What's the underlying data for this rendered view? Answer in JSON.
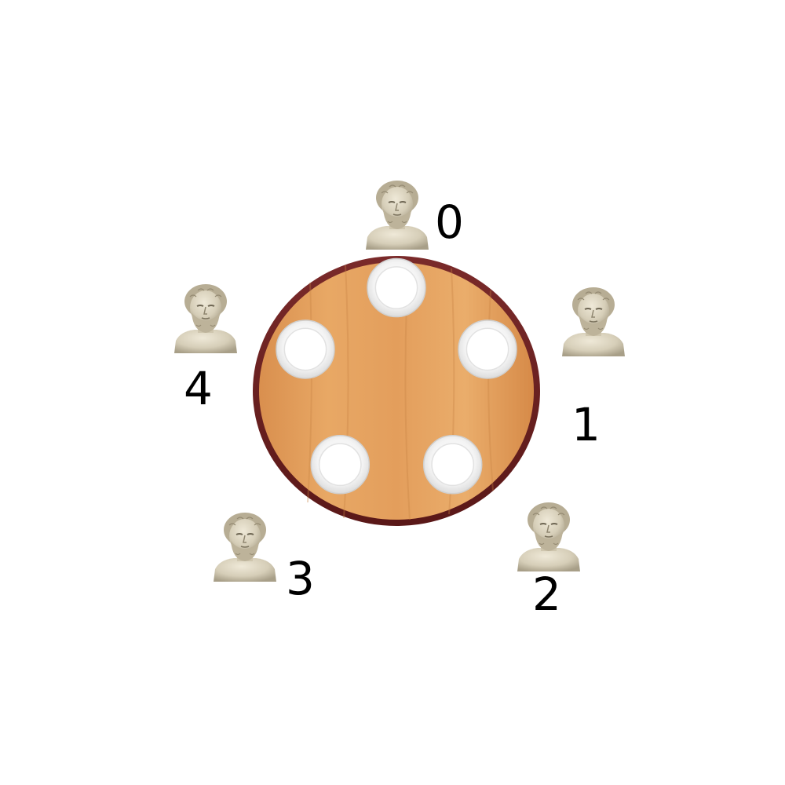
{
  "philosophers": [
    {
      "label": "0"
    },
    {
      "label": "1"
    },
    {
      "label": "2"
    },
    {
      "label": "3"
    },
    {
      "label": "4"
    }
  ],
  "plate_count": 5,
  "colors": {
    "table_wood": "#e0a060",
    "table_rim": "#6b1f1f",
    "plate": "#ffffff",
    "marble": "#d9d2bf",
    "background": "#ffffff"
  },
  "icons": {
    "philosopher": "philosopher-bust-icon",
    "plate": "plate-icon"
  }
}
